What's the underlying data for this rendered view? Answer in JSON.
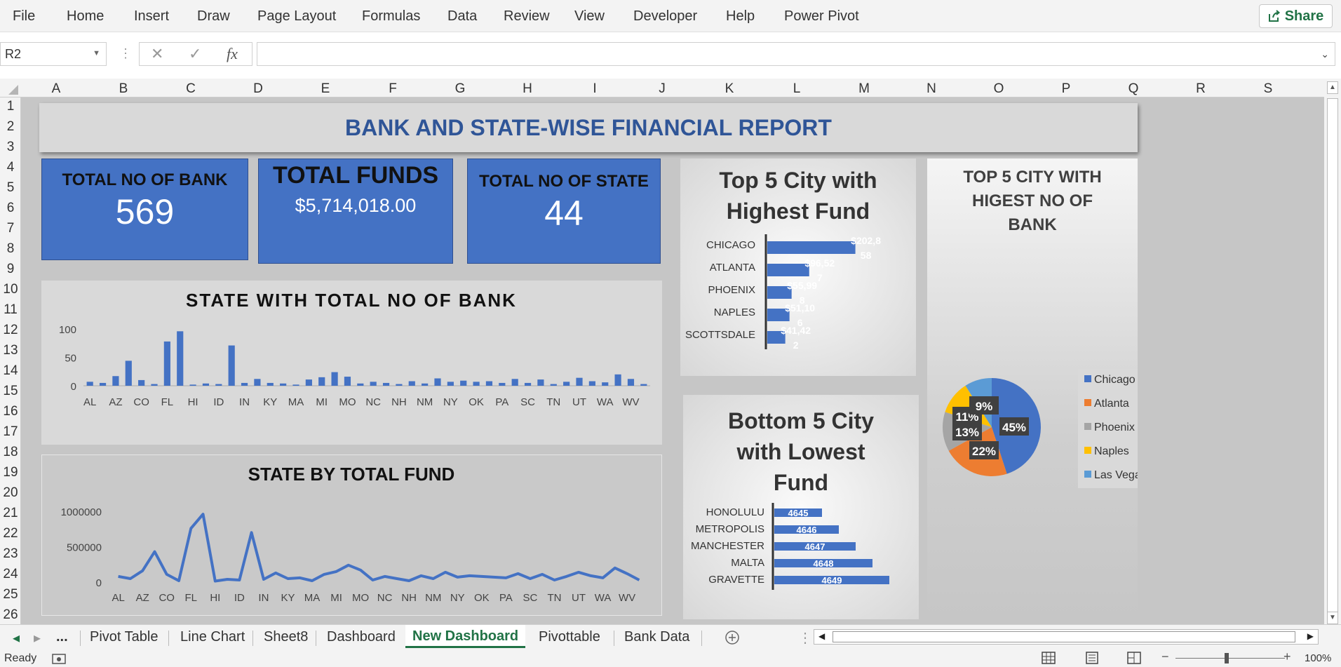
{
  "ribbon": {
    "tabs": [
      "File",
      "Home",
      "Insert",
      "Draw",
      "Page Layout",
      "Formulas",
      "Data",
      "Review",
      "View",
      "Developer",
      "Help",
      "Power Pivot"
    ],
    "share_label": "Share",
    "share_icon": "share-icon"
  },
  "formula_bar": {
    "name_box": "R2",
    "formula": "",
    "fx_label": "fx"
  },
  "columns": [
    "A",
    "B",
    "C",
    "D",
    "E",
    "F",
    "G",
    "H",
    "I",
    "J",
    "K",
    "L",
    "M",
    "N",
    "O",
    "P",
    "Q",
    "R",
    "S"
  ],
  "rows": [
    "1",
    "2",
    "3",
    "4",
    "5",
    "6",
    "7",
    "8",
    "9",
    "10",
    "11",
    "12",
    "13",
    "14",
    "15",
    "16",
    "17",
    "18",
    "19",
    "20",
    "21",
    "22",
    "23",
    "24",
    "25",
    "26"
  ],
  "dashboard": {
    "title": "BANK AND STATE-WISE FINANCIAL REPORT",
    "kpis": {
      "banks_label": "TOTAL NO OF BANK",
      "banks_value": "569",
      "funds_label": "TOTAL FUNDS",
      "funds_value": "$5,714,018.00",
      "states_label": "TOTAL NO OF STATE",
      "states_value": "44"
    }
  },
  "chart_data": [
    {
      "type": "bar",
      "title": "STATE WITH TOTAL NO OF BANK",
      "categories": [
        "AL",
        "",
        "AZ",
        "",
        "CO",
        "",
        "FL",
        "",
        "HI",
        "",
        "ID",
        "",
        "IN",
        "",
        "KY",
        "",
        "MA",
        "",
        "MI",
        "",
        "MO",
        "",
        "NC",
        "",
        "NH",
        "",
        "NM",
        "",
        "NY",
        "",
        "OK",
        "",
        "PA",
        "",
        "SC",
        "",
        "TN",
        "",
        "UT",
        "",
        "WA",
        "",
        "WV",
        ""
      ],
      "values": [
        7,
        5,
        17,
        44,
        10,
        3,
        78,
        96,
        2,
        4,
        3,
        71,
        5,
        12,
        5,
        4,
        2,
        11,
        15,
        24,
        16,
        4,
        7,
        5,
        3,
        8,
        4,
        13,
        7,
        9,
        7,
        8,
        5,
        12,
        5,
        11,
        3,
        7,
        14,
        8,
        6,
        20,
        12,
        3
      ],
      "yticks": [
        "0",
        "50",
        "100"
      ],
      "ylim": [
        0,
        110
      ]
    },
    {
      "type": "line",
      "title": "STATE BY TOTAL FUND",
      "categories": [
        "AL",
        "",
        "AZ",
        "",
        "CO",
        "",
        "FL",
        "",
        "HI",
        "",
        "ID",
        "",
        "IN",
        "",
        "KY",
        "",
        "MA",
        "",
        "MI",
        "",
        "MO",
        "",
        "NC",
        "",
        "NH",
        "",
        "NM",
        "",
        "NY",
        "",
        "OK",
        "",
        "PA",
        "",
        "SC",
        "",
        "TN",
        "",
        "UT",
        "",
        "WA",
        "",
        "WV",
        ""
      ],
      "values": [
        80000,
        50000,
        160000,
        430000,
        110000,
        20000,
        760000,
        960000,
        15000,
        40000,
        30000,
        700000,
        40000,
        130000,
        50000,
        60000,
        20000,
        110000,
        150000,
        240000,
        170000,
        30000,
        80000,
        50000,
        20000,
        90000,
        50000,
        140000,
        70000,
        90000,
        80000,
        70000,
        60000,
        120000,
        50000,
        110000,
        30000,
        80000,
        140000,
        90000,
        60000,
        200000,
        120000,
        30000
      ],
      "yticks": [
        "0",
        "500000",
        "1000000"
      ],
      "ylim": [
        0,
        1050000
      ]
    },
    {
      "type": "bar",
      "title": "Top 5 City with Highest Fund",
      "categories": [
        "CHICAGO",
        "ATLANTA",
        "PHOENIX",
        "NAPLES",
        "SCOTTSDALE"
      ],
      "values": [
        202858,
        96527,
        55998,
        51106,
        41422
      ],
      "labels": [
        "$202,858",
        "$96,527",
        "$55,998",
        "$51,106",
        "$41,422"
      ],
      "xlim": [
        0,
        210000
      ]
    },
    {
      "type": "bar",
      "title": "Bottom 5 City with Lowest Fund",
      "categories": [
        "HONOLULU",
        "METROPOLIS",
        "MANCHESTER",
        "MALTA",
        "GRAVETTE"
      ],
      "values": [
        4645,
        4646,
        4647,
        4648,
        4649
      ],
      "labels": [
        "4645",
        "4646",
        "4647",
        "4648",
        "4649"
      ]
    },
    {
      "type": "pie",
      "title": "TOP 5 CITY WITH HIGEST NO OF BANK",
      "slices": [
        {
          "name": "Chicago",
          "value": 45,
          "label": "45%",
          "color": "#4472c4"
        },
        {
          "name": "Atlanta",
          "value": 22,
          "label": "22%",
          "color": "#ed7d31"
        },
        {
          "name": "Phoenix",
          "value": 13,
          "label": "13%",
          "color": "#a5a5a5"
        },
        {
          "name": "Naples",
          "value": 11,
          "label": "11%",
          "color": "#ffc000"
        },
        {
          "name": "Las Vegas",
          "value": 9,
          "label": "9%",
          "color": "#5b9bd5"
        }
      ],
      "legend": "right"
    }
  ],
  "sheet_tabs": {
    "more": "...",
    "tabs": [
      "Pivot Table",
      "Line Chart",
      "Sheet8",
      "Dashboard",
      "New Dashboard",
      "Pivottable",
      "Bank Data"
    ],
    "active": "New Dashboard"
  },
  "status": {
    "ready": "Ready",
    "zoom": "100%"
  },
  "colors": {
    "accent": "#217346",
    "kpi": "#4472c4",
    "title": "#2f5597"
  }
}
